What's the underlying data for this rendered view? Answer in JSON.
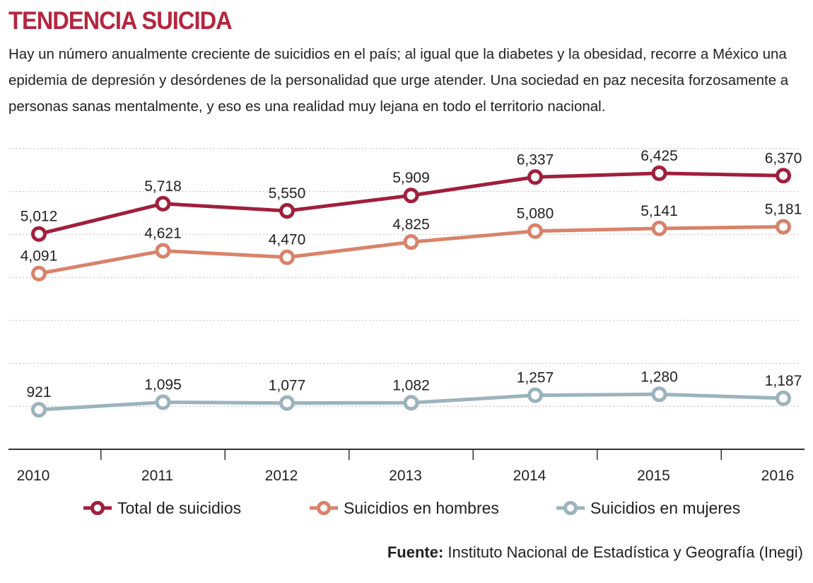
{
  "title": "TENDENCIA SUICIDA",
  "subtitle": "Hay un número anualmente creciente de suicidios en el país; al igual que la diabetes y la obesidad, recorre a México una epidemia de depresión  y desórdenes de la personalidad que urge atender. Una sociedad en paz necesita forzosamente a personas sanas mentalmente, y eso es una realidad muy lejana en todo el territorio nacional.",
  "source": {
    "label": "Fuente:",
    "text": " Instituto Nacional de Estadística y Geografía (Inegi)"
  },
  "colors": {
    "title": "#b5253e",
    "total": "#a01f3c",
    "hombres": "#d9826a",
    "mujeres": "#9bb3bd",
    "grid": "#c8c8c8",
    "axis": "#333333"
  },
  "chart_data": {
    "type": "line",
    "x": [
      "2010",
      "2011",
      "2012",
      "2013",
      "2014",
      "2015",
      "2016"
    ],
    "series": [
      {
        "name": "Total de suicidios",
        "values": [
          5012,
          5718,
          5550,
          5909,
          6337,
          6425,
          6370
        ],
        "labels": [
          "5,012",
          "5,718",
          "5,550",
          "5,909",
          "6,337",
          "6,425",
          "6,370"
        ]
      },
      {
        "name": "Suicidios en hombres",
        "values": [
          4091,
          4621,
          4470,
          4825,
          5080,
          5141,
          5181
        ],
        "labels": [
          "4,091",
          "4,621",
          "4,470",
          "4,825",
          "5,080",
          "5,141",
          "5,181"
        ]
      },
      {
        "name": "Suicidios en mujeres",
        "values": [
          921,
          1095,
          1077,
          1082,
          1257,
          1280,
          1187
        ],
        "labels": [
          "921",
          "1,095",
          "1,077",
          "1,082",
          "1,257",
          "1,280",
          "1,187"
        ]
      }
    ],
    "ylim": [
      0,
      7000
    ],
    "grid": true,
    "legend": "bottom"
  }
}
